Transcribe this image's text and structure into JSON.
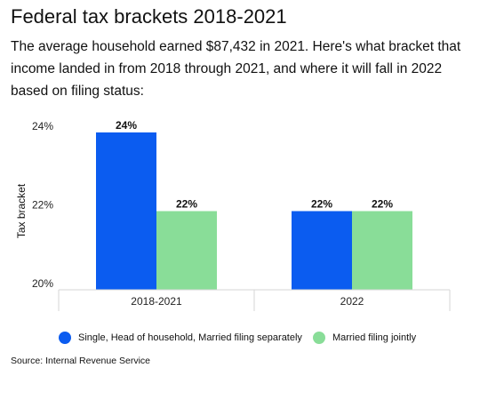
{
  "title": "Federal tax brackets 2018-2021",
  "subtitle": "The average household earned $87,432 in 2021. Here's what bracket that income landed in from 2018 through 2021, and where it will fall in 2022 based on filing status:",
  "source": "Source: Internal Revenue Service",
  "colors": {
    "series_a": "#0B5CF0",
    "series_b": "#89DD98",
    "axis": "#d6d6d6"
  },
  "chart_data": {
    "type": "bar",
    "categories": [
      "2018-2021",
      "2022"
    ],
    "series": [
      {
        "name": "Single, Head of household, Married filing separately",
        "values": [
          24,
          22
        ],
        "labels": [
          "24%",
          "22%"
        ]
      },
      {
        "name": "Married filing jointly",
        "values": [
          22,
          22
        ],
        "labels": [
          "22%",
          "22%"
        ]
      }
    ],
    "ylabel": "Tax bracket",
    "xlabel": "",
    "ylim": [
      20,
      24
    ],
    "yticks": [
      {
        "value": 20,
        "label": "20%"
      },
      {
        "value": 22,
        "label": "22%"
      },
      {
        "value": 24,
        "label": "24%"
      }
    ],
    "grid": false,
    "legend": "bottom"
  }
}
